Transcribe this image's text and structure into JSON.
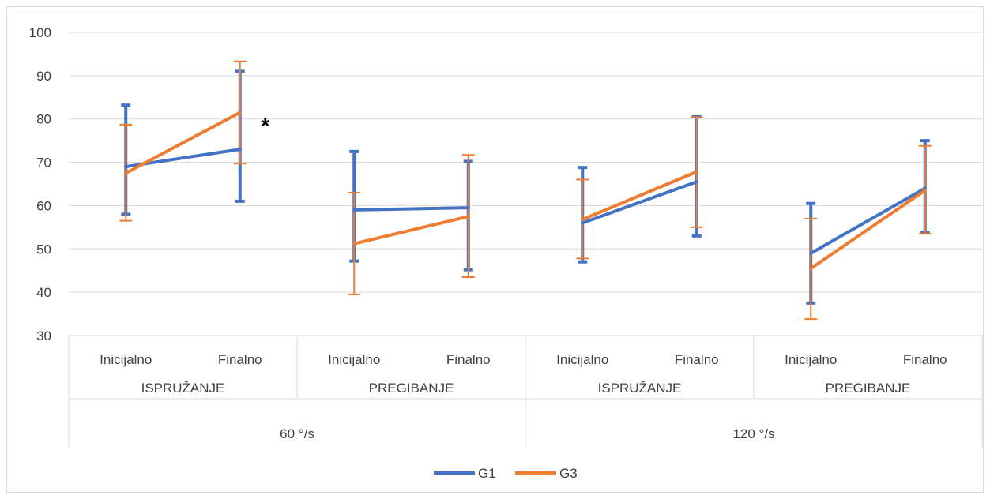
{
  "chart_data": {
    "type": "line",
    "title": "",
    "xlabel": "",
    "ylabel": "",
    "ylim": [
      30,
      100
    ],
    "yticks": [
      30,
      40,
      50,
      60,
      70,
      80,
      90,
      100
    ],
    "grid": true,
    "legend_position": "bottom",
    "categories": [
      "Inicijalno",
      "Finalno",
      "Inicijalno",
      "Finalno",
      "Inicijalno",
      "Finalno",
      "Inicijalno",
      "Finalno"
    ],
    "groups": [
      {
        "label": "ISPRUŽANJE",
        "speed": "60 °/s",
        "pair": [
          0,
          1
        ]
      },
      {
        "label": "PREGIBANJE",
        "speed": "60 °/s",
        "pair": [
          2,
          3
        ]
      },
      {
        "label": "ISPRUŽANJE",
        "speed": "120 °/s",
        "pair": [
          4,
          5
        ]
      },
      {
        "label": "PREGIBANJE",
        "speed": "120 °/s",
        "pair": [
          6,
          7
        ]
      }
    ],
    "speeds": [
      "60 °/s",
      "120 °/s"
    ],
    "series": [
      {
        "name": "G1",
        "color": "#4472c4",
        "values": [
          69,
          73,
          59,
          59.5,
          56,
          65.5,
          49,
          64
        ],
        "error_low": [
          58,
          61,
          47.2,
          45.2,
          47,
          53,
          37.5,
          53.8
        ],
        "error_high": [
          83.2,
          91,
          72.5,
          70.2,
          68.8,
          80.5,
          60.5,
          75
        ]
      },
      {
        "name": "G3",
        "color": "#ed7d31",
        "values": [
          67.5,
          81.5,
          51.2,
          57.5,
          56.8,
          67.8,
          45.5,
          63.5
        ],
        "error_low": [
          56.5,
          69.7,
          39.5,
          43.5,
          47.8,
          55,
          33.8,
          53.5
        ],
        "error_high": [
          78.7,
          93.3,
          63,
          71.7,
          66,
          80.4,
          57,
          73.8
        ]
      }
    ],
    "annotations": [
      {
        "text": "*",
        "category_index": 1,
        "y": 80
      }
    ]
  }
}
